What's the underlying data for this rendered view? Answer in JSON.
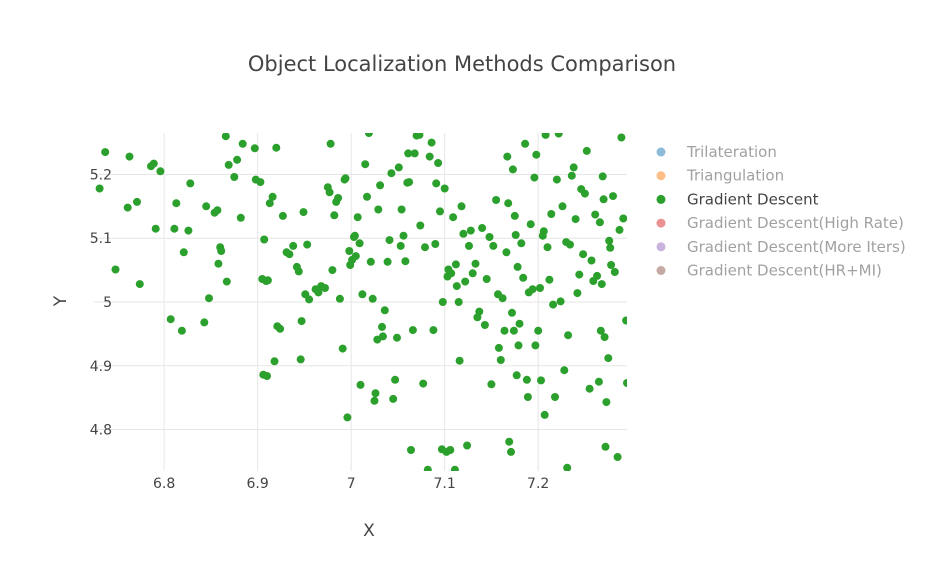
{
  "chart_data": {
    "type": "scatter",
    "title": "Object Localization Methods Comparison",
    "xlabel": "X",
    "ylabel": "Y",
    "xlim": [
      6.725,
      7.295
    ],
    "ylim": [
      4.735,
      5.265
    ],
    "x_ticks": [
      6.8,
      6.9,
      7,
      7.1,
      7.2
    ],
    "x_tick_labels": [
      "6.8",
      "6.9",
      "7",
      "7.1",
      "7.2"
    ],
    "y_ticks": [
      4.8,
      4.9,
      5.0,
      5.1,
      5.2
    ],
    "y_tick_labels": [
      "4.8",
      "4.9",
      "5",
      "5.1",
      "5.2"
    ],
    "grid": true,
    "legend_position": "right",
    "legend": [
      {
        "name": "Trilateration",
        "color": "#1f77b4",
        "visible": false
      },
      {
        "name": "Triangulation",
        "color": "#ff7f0e",
        "visible": false
      },
      {
        "name": "Gradient Descent",
        "color": "#2ca02c",
        "visible": true
      },
      {
        "name": "Gradient Descent(High Rate)",
        "color": "#d62728",
        "visible": false
      },
      {
        "name": "Gradient Descent(More Iters)",
        "color": "#9467bd",
        "visible": false
      },
      {
        "name": "Gradient Descent(HR+MI)",
        "color": "#8c564b",
        "visible": false
      }
    ],
    "series": [
      {
        "name": "Gradient Descent",
        "color": "#2ca02c",
        "points": [
          [
            6.731,
            5.178
          ],
          [
            6.737,
            5.235
          ],
          [
            6.748,
            5.051
          ],
          [
            6.761,
            5.148
          ],
          [
            6.763,
            5.228
          ],
          [
            6.771,
            5.157
          ],
          [
            6.774,
            5.028
          ],
          [
            6.786,
            5.213
          ],
          [
            6.789,
            5.217
          ],
          [
            6.791,
            5.115
          ],
          [
            6.796,
            5.205
          ],
          [
            6.807,
            4.973
          ],
          [
            6.811,
            5.115
          ],
          [
            6.813,
            5.155
          ],
          [
            6.819,
            4.955
          ],
          [
            6.821,
            5.078
          ],
          [
            6.826,
            5.112
          ],
          [
            6.828,
            5.186
          ],
          [
            6.843,
            4.968
          ],
          [
            6.845,
            5.15
          ],
          [
            6.848,
            5.006
          ],
          [
            6.854,
            5.14
          ],
          [
            6.857,
            5.144
          ],
          [
            6.858,
            5.06
          ],
          [
            6.86,
            5.086
          ],
          [
            6.861,
            5.08
          ],
          [
            6.866,
            5.26
          ],
          [
            6.867,
            5.032
          ],
          [
            6.869,
            5.215
          ],
          [
            6.875,
            5.196
          ],
          [
            6.878,
            5.223
          ],
          [
            6.882,
            5.132
          ],
          [
            6.884,
            5.248
          ],
          [
            6.897,
            5.241
          ],
          [
            6.898,
            5.192
          ],
          [
            6.903,
            5.188
          ],
          [
            6.905,
            5.036
          ],
          [
            6.906,
            4.886
          ],
          [
            6.907,
            5.098
          ],
          [
            6.909,
            5.033
          ],
          [
            6.91,
            4.884
          ],
          [
            6.911,
            5.034
          ],
          [
            6.913,
            5.155
          ],
          [
            6.916,
            5.165
          ],
          [
            6.918,
            4.907
          ],
          [
            6.92,
            5.242
          ],
          [
            6.921,
            4.962
          ],
          [
            6.924,
            4.958
          ],
          [
            6.927,
            5.135
          ],
          [
            6.931,
            5.078
          ],
          [
            6.934,
            5.075
          ],
          [
            6.938,
            5.088
          ],
          [
            6.942,
            5.055
          ],
          [
            6.944,
            5.048
          ],
          [
            6.946,
            4.91
          ],
          [
            6.947,
            4.97
          ],
          [
            6.949,
            5.141
          ],
          [
            6.951,
            5.012
          ],
          [
            6.953,
            5.09
          ],
          [
            6.955,
            5.004
          ],
          [
            6.962,
            5.02
          ],
          [
            6.965,
            5.015
          ],
          [
            6.968,
            5.025
          ],
          [
            6.972,
            5.022
          ],
          [
            6.975,
            5.18
          ],
          [
            6.977,
            5.172
          ],
          [
            6.978,
            5.248
          ],
          [
            6.98,
            5.05
          ],
          [
            6.982,
            5.136
          ],
          [
            6.984,
            5.157
          ],
          [
            6.986,
            5.163
          ],
          [
            6.988,
            5.005
          ],
          [
            6.991,
            4.927
          ],
          [
            6.993,
            5.192
          ],
          [
            6.994,
            5.194
          ],
          [
            6.996,
            4.819
          ],
          [
            6.998,
            5.08
          ],
          [
            6.999,
            5.058
          ],
          [
            7.001,
            5.066
          ],
          [
            7.003,
            5.102
          ],
          [
            7.004,
            5.104
          ],
          [
            7.005,
            5.072
          ],
          [
            7.007,
            5.133
          ],
          [
            7.009,
            5.092
          ],
          [
            7.01,
            4.87
          ],
          [
            7.012,
            5.012
          ],
          [
            7.015,
            5.216
          ],
          [
            7.017,
            5.165
          ],
          [
            7.019,
            5.265
          ],
          [
            7.021,
            5.063
          ],
          [
            7.023,
            5.005
          ],
          [
            7.025,
            4.845
          ],
          [
            7.026,
            4.857
          ],
          [
            7.028,
            4.941
          ],
          [
            7.029,
            5.145
          ],
          [
            7.031,
            5.183
          ],
          [
            7.033,
            4.961
          ],
          [
            7.034,
            4.946
          ],
          [
            7.036,
            4.987
          ],
          [
            7.039,
            5.063
          ],
          [
            7.041,
            5.097
          ],
          [
            7.043,
            5.202
          ],
          [
            7.045,
            4.848
          ],
          [
            7.047,
            4.878
          ],
          [
            7.049,
            4.944
          ],
          [
            7.051,
            5.211
          ],
          [
            7.053,
            5.088
          ],
          [
            7.054,
            5.145
          ],
          [
            7.056,
            5.104
          ],
          [
            7.058,
            5.064
          ],
          [
            7.06,
            5.187
          ],
          [
            7.061,
            5.233
          ],
          [
            7.062,
            5.188
          ],
          [
            7.064,
            4.768
          ],
          [
            7.066,
            4.956
          ],
          [
            7.068,
            5.233
          ],
          [
            7.07,
            5.261
          ],
          [
            7.073,
            5.262
          ],
          [
            7.074,
            5.12
          ],
          [
            7.077,
            4.872
          ],
          [
            7.079,
            5.086
          ],
          [
            7.082,
            4.737
          ],
          [
            7.084,
            5.228
          ],
          [
            7.086,
            5.25
          ],
          [
            7.088,
            4.956
          ],
          [
            7.09,
            5.091
          ],
          [
            7.091,
            5.186
          ],
          [
            7.093,
            5.218
          ],
          [
            7.095,
            5.142
          ],
          [
            7.097,
            4.769
          ],
          [
            7.098,
            5.0
          ],
          [
            7.1,
            5.178
          ],
          [
            7.102,
            4.765
          ],
          [
            7.103,
            5.04
          ],
          [
            7.104,
            5.051
          ],
          [
            7.106,
            4.768
          ],
          [
            7.107,
            5.045
          ],
          [
            7.109,
            5.133
          ],
          [
            7.111,
            4.737
          ],
          [
            7.112,
            5.059
          ],
          [
            7.113,
            5.025
          ],
          [
            7.115,
            5.0
          ],
          [
            7.116,
            4.908
          ],
          [
            7.118,
            5.15
          ],
          [
            7.12,
            5.107
          ],
          [
            7.122,
            5.032
          ],
          [
            7.124,
            4.775
          ],
          [
            7.126,
            5.088
          ],
          [
            7.128,
            5.112
          ],
          [
            7.13,
            5.045
          ],
          [
            7.133,
            5.06
          ],
          [
            7.135,
            4.976
          ],
          [
            7.137,
            4.985
          ],
          [
            7.14,
            5.116
          ],
          [
            7.143,
            4.964
          ],
          [
            7.145,
            5.036
          ],
          [
            7.148,
            5.102
          ],
          [
            7.15,
            4.871
          ],
          [
            7.152,
            5.088
          ],
          [
            7.155,
            5.16
          ],
          [
            7.157,
            5.012
          ],
          [
            7.158,
            4.928
          ],
          [
            7.16,
            4.909
          ],
          [
            7.162,
            5.006
          ],
          [
            7.164,
            4.955
          ],
          [
            7.166,
            5.078
          ],
          [
            7.167,
            5.228
          ],
          [
            7.168,
            5.155
          ],
          [
            7.169,
            4.781
          ],
          [
            7.171,
            4.765
          ],
          [
            7.172,
            4.983
          ],
          [
            7.173,
            5.208
          ],
          [
            7.174,
            4.955
          ],
          [
            7.175,
            5.135
          ],
          [
            7.176,
            5.105
          ],
          [
            7.177,
            4.885
          ],
          [
            7.178,
            5.055
          ],
          [
            7.179,
            4.932
          ],
          [
            7.18,
            4.966
          ],
          [
            7.182,
            5.092
          ],
          [
            7.184,
            5.038
          ],
          [
            7.186,
            5.248
          ],
          [
            7.188,
            4.878
          ],
          [
            7.189,
            4.851
          ],
          [
            7.19,
            5.015
          ],
          [
            7.192,
            5.122
          ],
          [
            7.194,
            5.02
          ],
          [
            7.196,
            5.195
          ],
          [
            7.197,
            4.932
          ],
          [
            7.198,
            5.231
          ],
          [
            7.2,
            4.955
          ],
          [
            7.202,
            5.022
          ],
          [
            7.203,
            4.877
          ],
          [
            7.205,
            5.104
          ],
          [
            7.206,
            5.111
          ],
          [
            7.207,
            4.823
          ],
          [
            7.208,
            5.262
          ],
          [
            7.21,
            5.086
          ],
          [
            7.212,
            5.035
          ],
          [
            7.214,
            5.138
          ],
          [
            7.216,
            4.996
          ],
          [
            7.218,
            4.851
          ],
          [
            7.22,
            5.192
          ],
          [
            7.222,
            5.264
          ],
          [
            7.224,
            5.001
          ],
          [
            7.226,
            5.15
          ],
          [
            7.228,
            4.893
          ],
          [
            7.23,
            5.094
          ],
          [
            7.231,
            4.74
          ],
          [
            7.232,
            4.948
          ],
          [
            7.234,
            5.09
          ],
          [
            7.236,
            5.198
          ],
          [
            7.238,
            5.211
          ],
          [
            7.24,
            5.13
          ],
          [
            7.242,
            5.014
          ],
          [
            7.244,
            5.043
          ],
          [
            7.246,
            5.177
          ],
          [
            7.248,
            5.075
          ],
          [
            7.25,
            5.17
          ],
          [
            7.252,
            5.237
          ],
          [
            7.255,
            4.864
          ],
          [
            7.257,
            5.065
          ],
          [
            7.259,
            5.033
          ],
          [
            7.261,
            5.137
          ],
          [
            7.263,
            5.041
          ],
          [
            7.265,
            4.875
          ],
          [
            7.266,
            5.125
          ],
          [
            7.267,
            4.955
          ],
          [
            7.268,
            5.028
          ],
          [
            7.269,
            5.197
          ],
          [
            7.27,
            5.161
          ],
          [
            7.271,
            4.945
          ],
          [
            7.272,
            4.773
          ],
          [
            7.273,
            4.843
          ],
          [
            7.275,
            4.912
          ],
          [
            7.276,
            5.096
          ],
          [
            7.277,
            5.085
          ],
          [
            7.278,
            5.058
          ],
          [
            7.28,
            5.166
          ],
          [
            7.282,
            5.047
          ],
          [
            7.285,
            4.757
          ],
          [
            7.287,
            5.113
          ],
          [
            7.289,
            5.258
          ],
          [
            7.291,
            5.131
          ],
          [
            7.294,
            4.971
          ],
          [
            7.295,
            4.873
          ]
        ]
      }
    ]
  }
}
